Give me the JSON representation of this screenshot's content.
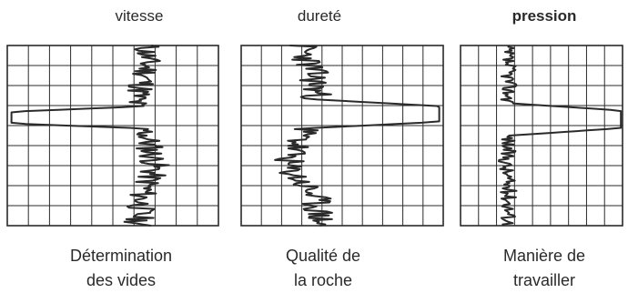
{
  "columns": [
    {
      "id": "vitesse",
      "title": "vitesse",
      "title_bold": false,
      "caption": [
        "Détermination",
        "des vides"
      ],
      "grid": {
        "cols": 10,
        "rows": 9
      }
    },
    {
      "id": "durete",
      "title": "dureté",
      "title_bold": false,
      "caption": [
        "Qualité de",
        "la roche"
      ],
      "grid": {
        "cols": 10,
        "rows": 9
      }
    },
    {
      "id": "pression",
      "title": "pression",
      "title_bold": true,
      "caption": [
        "Manière de",
        "travailler"
      ],
      "grid": {
        "cols": 9,
        "rows": 9
      }
    }
  ],
  "colors": {
    "ink": "#2a2a2a",
    "grid": "#2a2a2a",
    "background": "#ffffff"
  }
}
